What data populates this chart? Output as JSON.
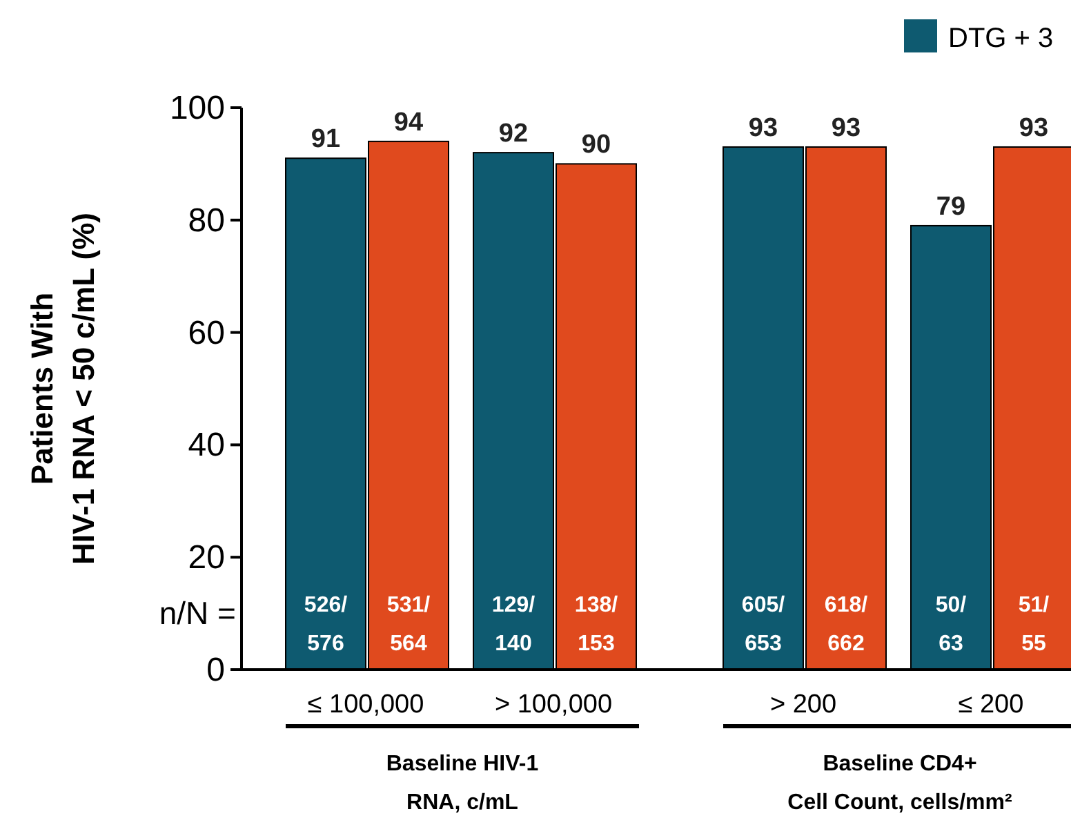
{
  "chart_data": {
    "type": "bar",
    "ylabel": "Patients With\nHIV-1 RNA < 50 c/mL (%)",
    "categories": [
      "≤ 100,000",
      "> 100,000",
      "> 200",
      "≤ 200"
    ],
    "series": [
      {
        "name": "DTG + 3",
        "color": "#0e5a70",
        "values": [
          91,
          92,
          93,
          79
        ]
      },
      {
        "color": "#e04a1e",
        "values": [
          94,
          90,
          93,
          93
        ]
      }
    ],
    "ylim": [
      0,
      100
    ],
    "yticks": [
      0,
      20,
      40,
      60,
      80,
      100
    ],
    "data_labels": true,
    "legend": "top right",
    "annotations": [
      "n/N =",
      "526/\n576",
      "531/\n564",
      "129/\n140",
      "138/\n153",
      "605/\n653",
      "618/\n662",
      "50/\n63",
      "51/\n55",
      "Baseline HIV-1\nRNA, c/mL",
      "Baseline CD4+\nCell Count, cells/mm²"
    ]
  }
}
